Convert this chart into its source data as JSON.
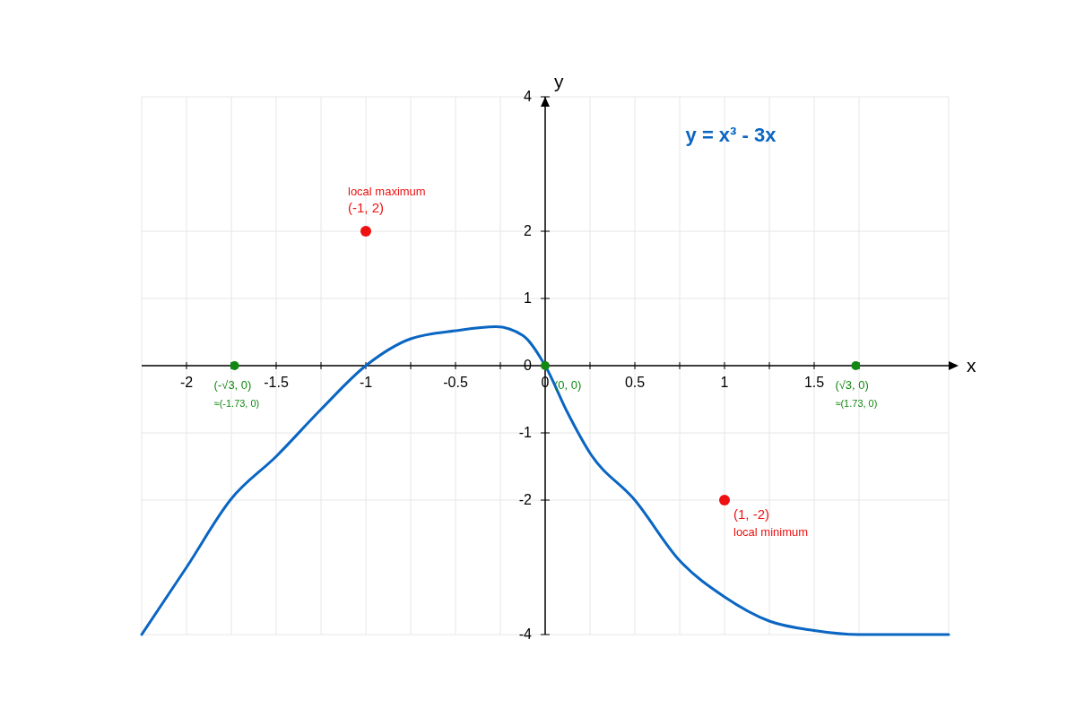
{
  "chart_data": {
    "type": "line",
    "title": "y = x³ - 3x",
    "xlabel": "x",
    "ylabel": "y",
    "xlim": [
      -2.25,
      2.25
    ],
    "ylim": [
      -4,
      4
    ],
    "xticks": [
      -2,
      {
        "value": -1.75,
        "label": null
      },
      -1.5,
      {
        "value": -1.25,
        "label": null
      },
      -1,
      {
        "value": -0.75,
        "label": null
      },
      -0.5,
      {
        "value": -0.25,
        "label": null
      },
      0,
      {
        "value": 0.25,
        "label": null
      },
      0.5,
      {
        "value": 0.75,
        "label": null
      },
      1,
      {
        "value": 1.25,
        "label": null
      },
      1.5,
      {
        "value": 1.75,
        "label": null
      }
    ],
    "yticks": [
      -4,
      -2,
      -1,
      0,
      1,
      2,
      4
    ],
    "grid": true,
    "series": [
      {
        "type": "line",
        "color": "#0a66c2",
        "marker": "none",
        "x": [
          -2.25,
          -2,
          -1.75,
          -1.5,
          -1.25,
          -1,
          -0.75,
          -0.5,
          -0.275,
          -0.125,
          0,
          0.125,
          0.25,
          0.5,
          0.75,
          1,
          1.25,
          1.5,
          1.75,
          2.25
        ],
        "values": [
          -4,
          -3,
          -1.98,
          -1.35,
          -0.65,
          0,
          0.4,
          0.52,
          0.58,
          0.45,
          0,
          -0.7,
          -1.3,
          -2,
          -2.9,
          -3.44,
          -3.8,
          -3.94,
          -4,
          -4
        ]
      },
      {
        "type": "scatter",
        "color": "#ee1111",
        "marker": "circle",
        "x": [
          -1,
          1
        ],
        "values": [
          2,
          -2
        ]
      },
      {
        "type": "scatter",
        "color": "#118811",
        "marker": "circle",
        "x": [
          -1.732,
          0,
          1.732
        ],
        "values": [
          0,
          0,
          0
        ]
      }
    ],
    "annotations": [
      {
        "text": "local maximum",
        "x": -1,
        "y": 2
      },
      {
        "text": "(-1, 2)",
        "x": -1,
        "y": 2
      },
      {
        "text": "(1, -2)",
        "x": 1,
        "y": -2
      },
      {
        "text": "local minimum",
        "x": 1,
        "y": -2
      },
      {
        "text": "(-√3, 0)",
        "x": -1.732,
        "y": 0
      },
      "≈(-1.73, 0)",
      {
        "text": "(0, 0)",
        "x": 0,
        "y": 0
      },
      {
        "text": "(√3, 0)",
        "x": 1.732,
        "y": 0
      },
      "≈(1.73, 0)"
    ]
  }
}
